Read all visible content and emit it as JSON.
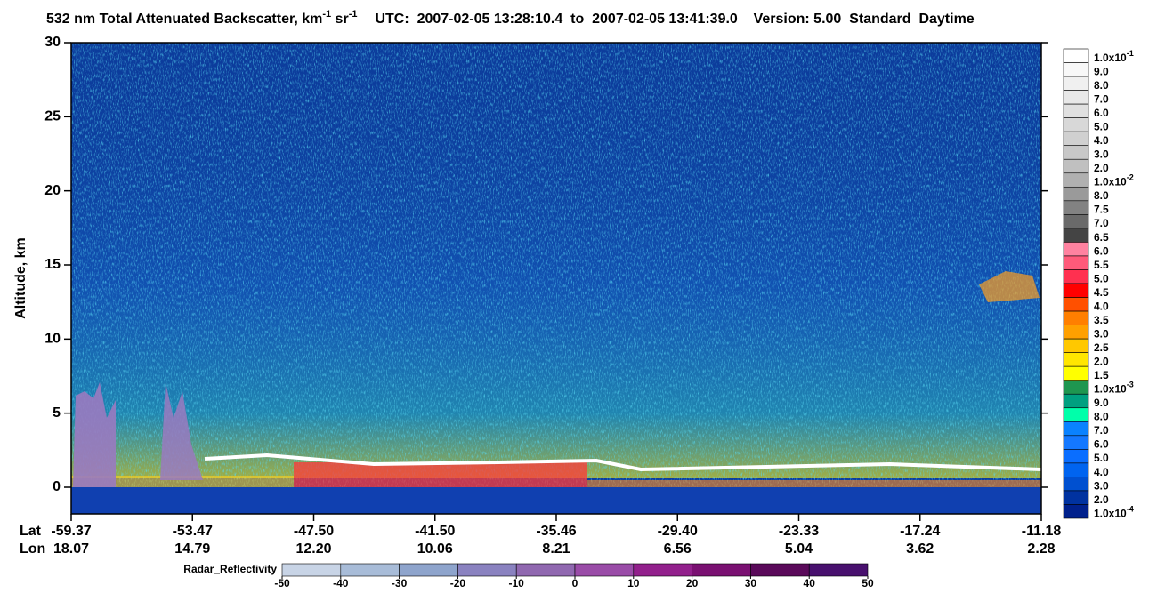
{
  "chart_data": {
    "type": "curtain",
    "title_parts": [
      "532 nm Total Attenuated Backscatter, km",
      "-1",
      " sr",
      "-1",
      "UTC:  2007-02-05 13:28:10.4  to  2007-02-05 13:41:39.0    Version: 5.00  Standard  Daytime"
    ],
    "y_label": "Altitude, km",
    "ylim": [
      -1.8,
      30
    ],
    "yticks": [
      0,
      5,
      10,
      15,
      20,
      25,
      30
    ],
    "x_row_labels": [
      "Lat",
      "Lon"
    ],
    "categories": [
      "-59.37",
      "-53.47",
      "-47.50",
      "-41.50",
      "-35.46",
      "-29.40",
      "-23.33",
      "-17.24",
      "-11.18"
    ],
    "lon_labels": [
      "18.07",
      "14.79",
      "12.20",
      "10.06",
      "8.21",
      "6.56",
      "5.04",
      "3.62",
      "2.28"
    ],
    "colorbar": [
      {
        "label": "1.0x10",
        "exp": "-1",
        "color": "#ffffff"
      },
      {
        "label": "9.0",
        "color": "#f8f8f8"
      },
      {
        "label": "8.0",
        "color": "#f0f0f0"
      },
      {
        "label": "7.0",
        "color": "#e8e8e8"
      },
      {
        "label": "6.0",
        "color": "#e0e0e0"
      },
      {
        "label": "5.0",
        "color": "#d8d8d8"
      },
      {
        "label": "4.0",
        "color": "#d0d0d0"
      },
      {
        "label": "3.0",
        "color": "#c8c8c8"
      },
      {
        "label": "2.0",
        "color": "#c0c0c0"
      },
      {
        "label": "1.0x10",
        "exp": "-2",
        "color": "#b0b0b0"
      },
      {
        "label": "8.0",
        "color": "#9a9a9a"
      },
      {
        "label": "7.5",
        "color": "#828282"
      },
      {
        "label": "7.0",
        "color": "#6a6a6a"
      },
      {
        "label": "6.5",
        "color": "#444444"
      },
      {
        "label": "6.0",
        "color": "#ff82a0"
      },
      {
        "label": "5.5",
        "color": "#ff5a7a"
      },
      {
        "label": "5.0",
        "color": "#ff3050"
      },
      {
        "label": "4.5",
        "color": "#ff0000"
      },
      {
        "label": "4.0",
        "color": "#ff5000"
      },
      {
        "label": "3.5",
        "color": "#ff7f00"
      },
      {
        "label": "3.0",
        "color": "#ffa000"
      },
      {
        "label": "2.5",
        "color": "#ffc800"
      },
      {
        "label": "2.0",
        "color": "#ffe600"
      },
      {
        "label": "1.5",
        "color": "#ffff00"
      },
      {
        "label": "1.0x10",
        "exp": "-3",
        "color": "#1e9650"
      },
      {
        "label": "9.0",
        "color": "#00a080"
      },
      {
        "label": "8.0",
        "color": "#00ffaa"
      },
      {
        "label": "7.0",
        "color": "#0a82ff"
      },
      {
        "label": "6.0",
        "color": "#1478ff"
      },
      {
        "label": "5.0",
        "color": "#0a6eff"
      },
      {
        "label": "4.0",
        "color": "#0064f0"
      },
      {
        "label": "3.0",
        "color": "#0050d0"
      },
      {
        "label": "2.0",
        "color": "#0032a0"
      },
      {
        "label": "1.0x10",
        "exp": "-4",
        "color": "#00208c"
      }
    ],
    "radar_colorbar": {
      "label": "Radar_Reflectivity",
      "ticks": [
        -50,
        -40,
        -30,
        -20,
        -10,
        0,
        10,
        20,
        30,
        40,
        50
      ],
      "colors": [
        "#c8d4e6",
        "#a8bcd8",
        "#8ea4cc",
        "#8a82c0",
        "#9068b0",
        "#9a4ca8",
        "#92208c",
        "#7a1072",
        "#5a0a5a",
        "#48106e"
      ]
    }
  }
}
